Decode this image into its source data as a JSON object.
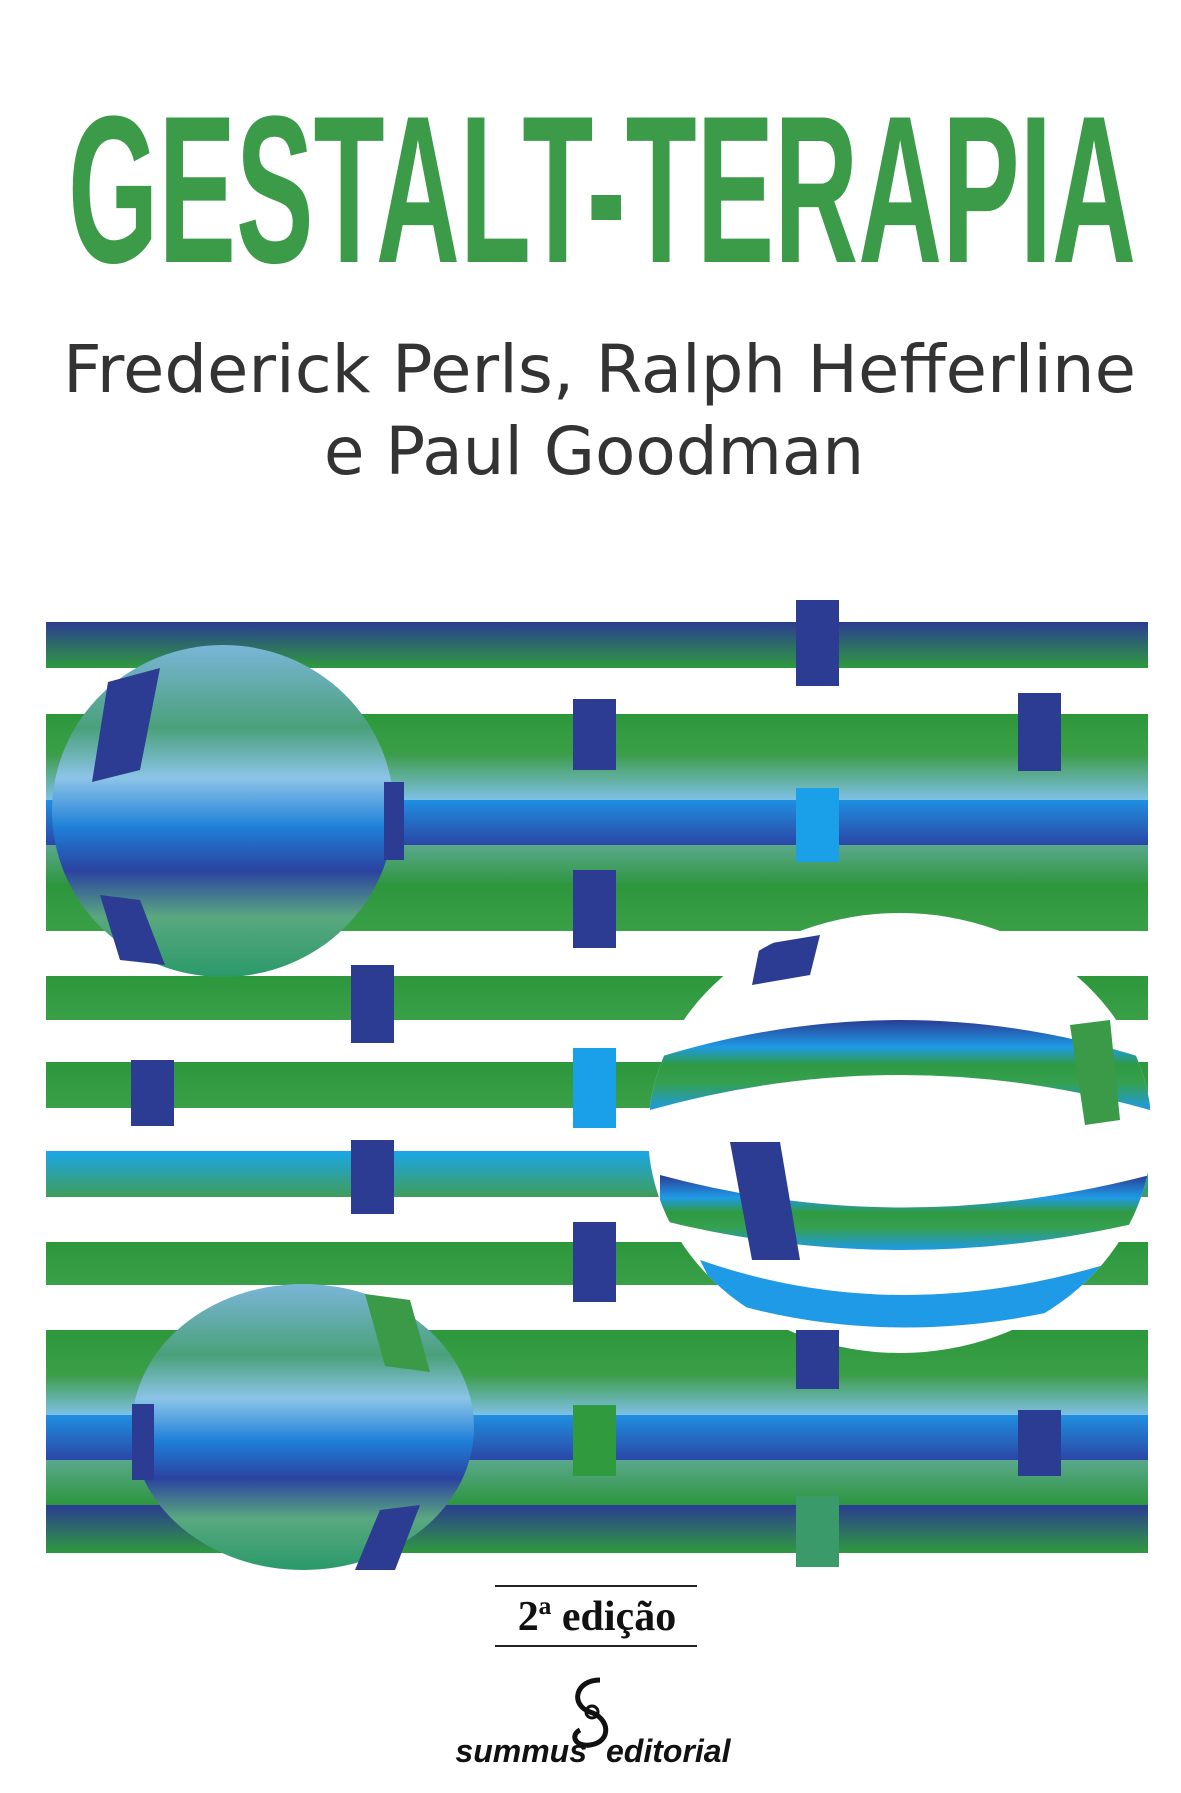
{
  "cover": {
    "title": "GESTALT-TERAPIA",
    "authors": [
      "Frederick Perls, Ralph Hefferline",
      "e Paul Goodman"
    ],
    "edition": "2ª edição",
    "publisher": {
      "name": "summus",
      "imprint": "editorial"
    }
  }
}
